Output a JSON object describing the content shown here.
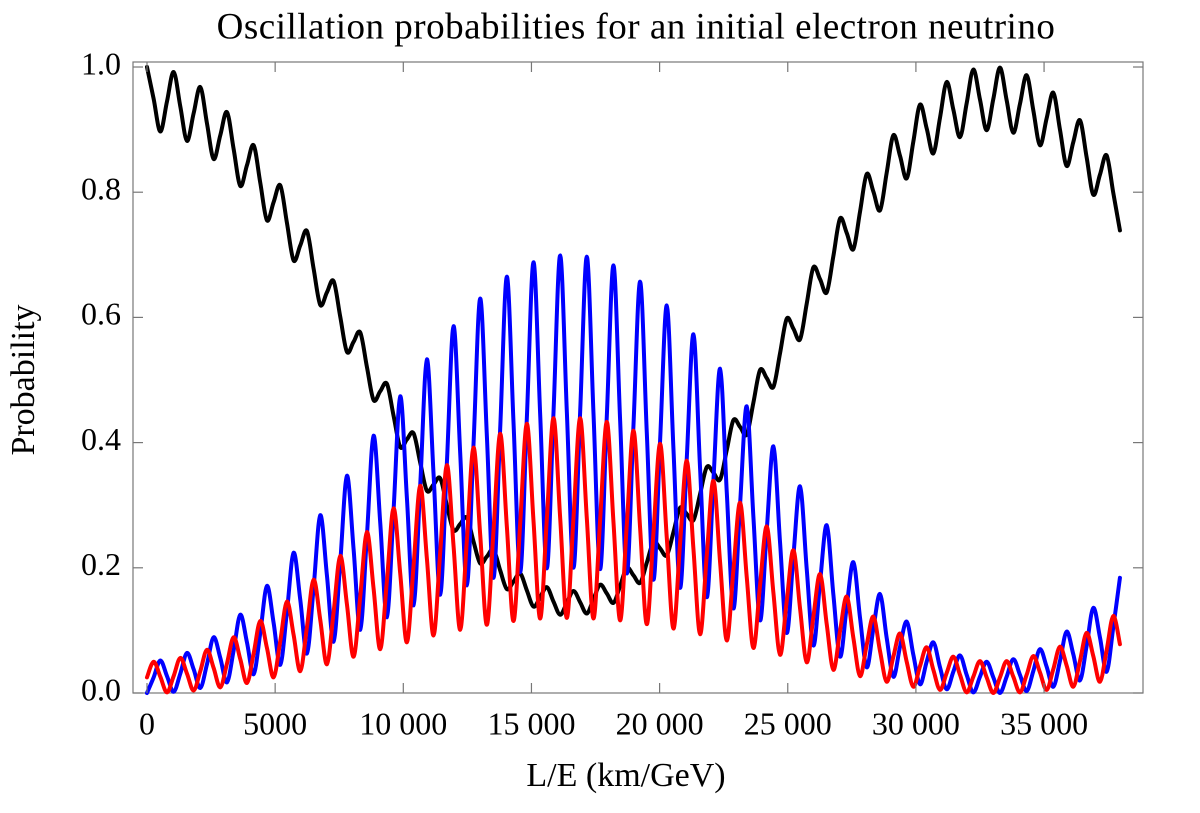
{
  "chart_data": {
    "type": "line",
    "title": "Oscillation probabilities for an initial electron neutrino",
    "x_label": "L/E (km/GeV)",
    "y_label": "Probability",
    "x": [
      0,
      260,
      520,
      780,
      1040,
      1300,
      1560,
      1820,
      2080,
      2340,
      2600,
      2860,
      3120,
      3380,
      3640,
      3900,
      4160,
      4420,
      4680,
      4940,
      5200,
      5460,
      5720,
      5980,
      6240,
      6500,
      6760,
      7020,
      7280,
      7540,
      7800,
      8060,
      8320,
      8580,
      8840,
      9100,
      9360,
      9620,
      9880,
      10140,
      10400,
      10660,
      10920,
      11180,
      11440,
      11700,
      11960,
      12220,
      12480,
      12740,
      13000,
      13260,
      13520,
      13780,
      14040,
      14300,
      14560,
      14820,
      15080,
      15340,
      15600,
      15860,
      16120,
      16380,
      16640,
      16900,
      17160,
      17420,
      17680,
      17940,
      18200,
      18460,
      18720,
      18980,
      19240,
      19500,
      19760,
      20020,
      20280,
      20540,
      20800,
      21060,
      21320,
      21580,
      21840,
      22100,
      22360,
      22620,
      22880,
      23140,
      23400,
      23660,
      23920,
      24180,
      24440,
      24700,
      24960,
      25220,
      25480,
      25740,
      26000,
      26260,
      26520,
      26780,
      27040,
      27300,
      27560,
      27820,
      28080,
      28340,
      28600,
      28860,
      29120,
      29380,
      29640,
      29900,
      30160,
      30420,
      30680,
      30940,
      31200,
      31460,
      31720,
      31980,
      32240,
      32500,
      32760,
      33020,
      33280,
      33540,
      33800,
      34060,
      34320,
      34580,
      34840,
      35100,
      35360,
      35620,
      35880,
      36140,
      36400,
      36660,
      36920,
      37180,
      37440,
      37700,
      37960
    ],
    "series": [
      {
        "color": "#000000",
        "values": [
          1.0,
          0.949,
          0.897,
          0.945,
          0.992,
          0.937,
          0.882,
          0.926,
          0.968,
          0.91,
          0.853,
          0.891,
          0.928,
          0.869,
          0.81,
          0.843,
          0.875,
          0.815,
          0.755,
          0.784,
          0.811,
          0.751,
          0.691,
          0.715,
          0.738,
          0.678,
          0.62,
          0.64,
          0.658,
          0.601,
          0.545,
          0.561,
          0.576,
          0.521,
          0.468,
          0.482,
          0.494,
          0.443,
          0.393,
          0.405,
          0.415,
          0.368,
          0.323,
          0.333,
          0.343,
          0.3,
          0.26,
          0.27,
          0.28,
          0.242,
          0.207,
          0.218,
          0.229,
          0.196,
          0.166,
          0.178,
          0.191,
          0.164,
          0.138,
          0.153,
          0.169,
          0.146,
          0.125,
          0.144,
          0.163,
          0.145,
          0.127,
          0.15,
          0.173,
          0.159,
          0.144,
          0.171,
          0.2,
          0.188,
          0.176,
          0.208,
          0.241,
          0.231,
          0.22,
          0.257,
          0.296,
          0.286,
          0.276,
          0.318,
          0.361,
          0.352,
          0.341,
          0.388,
          0.436,
          0.425,
          0.413,
          0.464,
          0.516,
          0.503,
          0.489,
          0.543,
          0.598,
          0.582,
          0.565,
          0.622,
          0.68,
          0.661,
          0.64,
          0.698,
          0.758,
          0.735,
          0.709,
          0.769,
          0.829,
          0.801,
          0.771,
          0.831,
          0.891,
          0.858,
          0.822,
          0.881,
          0.94,
          0.902,
          0.862,
          0.919,
          0.976,
          0.932,
          0.888,
          0.942,
          0.996,
          0.948,
          0.899,
          0.949,
          0.999,
          0.947,
          0.895,
          0.941,
          0.987,
          0.931,
          0.875,
          0.918,
          0.959,
          0.9,
          0.842,
          0.88,
          0.915,
          0.856,
          0.796,
          0.828,
          0.859,
          0.799,
          0.739
        ]
      },
      {
        "color": "#0000ff",
        "values": [
          0,
          0.025,
          0.052,
          0.027,
          0.002,
          0.031,
          0.064,
          0.038,
          0.008,
          0.046,
          0.089,
          0.056,
          0.017,
          0.068,
          0.125,
          0.081,
          0.03,
          0.096,
          0.171,
          0.112,
          0.045,
          0.13,
          0.224,
          0.149,
          0.063,
          0.168,
          0.284,
          0.188,
          0.082,
          0.209,
          0.347,
          0.23,
          0.101,
          0.251,
          0.411,
          0.272,
          0.121,
          0.292,
          0.474,
          0.312,
          0.14,
          0.332,
          0.533,
          0.35,
          0.157,
          0.367,
          0.586,
          0.383,
          0.172,
          0.398,
          0.63,
          0.411,
          0.184,
          0.422,
          0.665,
          0.432,
          0.193,
          0.439,
          0.688,
          0.445,
          0.199,
          0.448,
          0.699,
          0.45,
          0.2,
          0.449,
          0.697,
          0.447,
          0.198,
          0.442,
          0.683,
          0.435,
          0.191,
          0.427,
          0.657,
          0.416,
          0.181,
          0.404,
          0.619,
          0.39,
          0.168,
          0.375,
          0.573,
          0.358,
          0.153,
          0.34,
          0.518,
          0.321,
          0.135,
          0.302,
          0.458,
          0.281,
          0.116,
          0.26,
          0.394,
          0.24,
          0.096,
          0.219,
          0.33,
          0.198,
          0.076,
          0.177,
          0.268,
          0.157,
          0.058,
          0.138,
          0.209,
          0.12,
          0.041,
          0.103,
          0.158,
          0.088,
          0.026,
          0.074,
          0.114,
          0.061,
          0.014,
          0.05,
          0.081,
          0.041,
          0.006,
          0.034,
          0.06,
          0.029,
          0.001,
          0.026,
          0.05,
          0.025,
          0.0,
          0.026,
          0.054,
          0.029,
          0.003,
          0.035,
          0.07,
          0.042,
          0.01,
          0.051,
          0.098,
          0.062,
          0.02,
          0.075,
          0.136,
          0.089,
          0.034,
          0.105,
          0.184
        ]
      },
      {
        "color": "#ff0000",
        "values": [
          0.025,
          0.05,
          0.026,
          0.001,
          0.027,
          0.056,
          0.031,
          0.004,
          0.035,
          0.069,
          0.04,
          0.009,
          0.047,
          0.089,
          0.054,
          0.016,
          0.063,
          0.115,
          0.072,
          0.025,
          0.083,
          0.146,
          0.093,
          0.035,
          0.105,
          0.181,
          0.117,
          0.046,
          0.129,
          0.219,
          0.142,
          0.058,
          0.154,
          0.257,
          0.167,
          0.07,
          0.179,
          0.295,
          0.191,
          0.081,
          0.203,
          0.331,
          0.215,
          0.092,
          0.225,
          0.364,
          0.235,
          0.101,
          0.244,
          0.392,
          0.253,
          0.109,
          0.26,
          0.414,
          0.266,
          0.115,
          0.271,
          0.43,
          0.275,
          0.119,
          0.278,
          0.439,
          0.28,
          0.12,
          0.28,
          0.439,
          0.279,
          0.119,
          0.277,
          0.433,
          0.273,
          0.116,
          0.269,
          0.419,
          0.263,
          0.11,
          0.256,
          0.398,
          0.248,
          0.103,
          0.24,
          0.371,
          0.23,
          0.094,
          0.22,
          0.339,
          0.209,
          0.084,
          0.197,
          0.304,
          0.185,
          0.072,
          0.173,
          0.266,
          0.16,
          0.061,
          0.147,
          0.228,
          0.135,
          0.049,
          0.122,
          0.19,
          0.11,
          0.037,
          0.099,
          0.154,
          0.088,
          0.027,
          0.077,
          0.122,
          0.067,
          0.018,
          0.058,
          0.095,
          0.05,
          0.01,
          0.043,
          0.073,
          0.037,
          0.005,
          0.032,
          0.058,
          0.029,
          0.001,
          0.026,
          0.051,
          0.025,
          0.0,
          0.025,
          0.051,
          0.026,
          0.001,
          0.029,
          0.059,
          0.033,
          0.005,
          0.038,
          0.074,
          0.044,
          0.01,
          0.051,
          0.096,
          0.059,
          0.018,
          0.068,
          0.123,
          0.078
        ]
      }
    ],
    "xlim": [
      -546,
      38860
    ],
    "xticks": [
      0,
      5000,
      {
        "value": 10000,
        "label": "10 000"
      },
      {
        "value": 15000,
        "label": "15 000"
      },
      {
        "value": 20000,
        "label": "20 000"
      },
      {
        "value": 25000,
        "label": "25 000"
      },
      {
        "value": 30000,
        "label": "30 000"
      },
      {
        "value": 35000,
        "label": "35 000"
      }
    ],
    "ylim": [
      0,
      1.008
    ],
    "yticks": [
      {
        "value": 0,
        "label": "0.0"
      },
      0.2,
      0.4,
      0.6,
      0.8,
      {
        "value": 1,
        "label": "1.0"
      }
    ],
    "grid": false
  }
}
